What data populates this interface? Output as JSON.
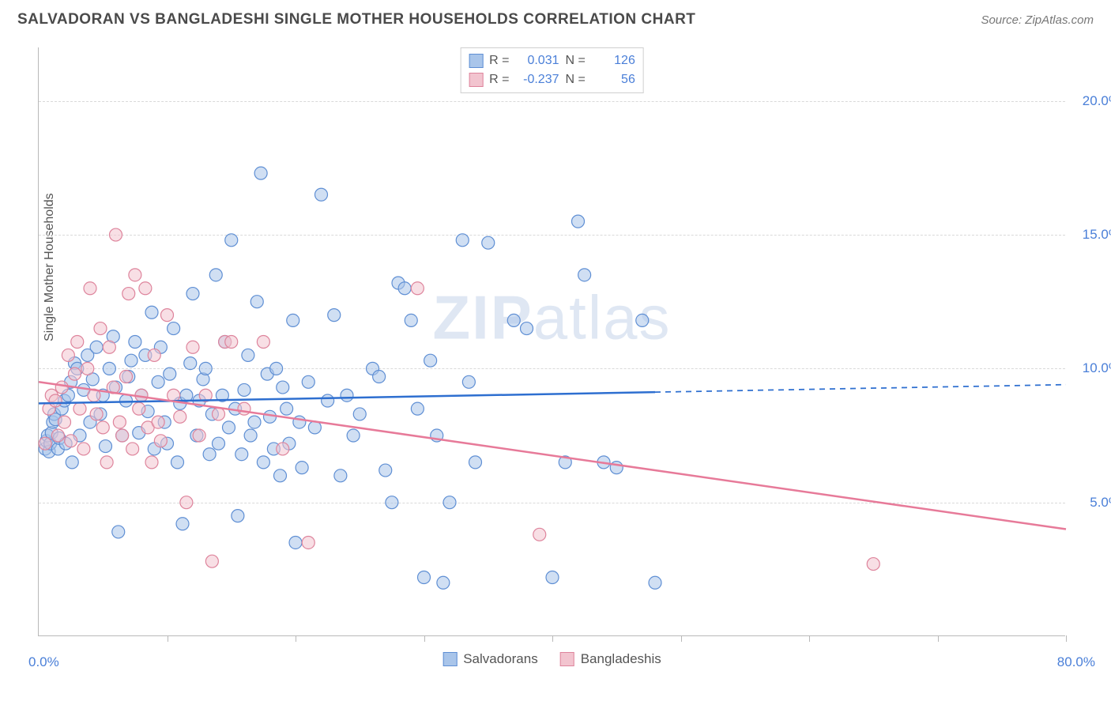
{
  "title": "SALVADORAN VS BANGLADESHI SINGLE MOTHER HOUSEHOLDS CORRELATION CHART",
  "source": "Source: ZipAtlas.com",
  "ylabel": "Single Mother Households",
  "watermark_bold": "ZIP",
  "watermark_rest": "atlas",
  "chart": {
    "type": "scatter",
    "xlim": [
      0,
      80
    ],
    "ylim": [
      0,
      22
    ],
    "x_ticks": [
      0,
      10,
      20,
      30,
      40,
      50,
      60,
      70,
      80
    ],
    "x_tick_labels": {
      "0": "0.0%",
      "80": "80.0%"
    },
    "y_gridlines": [
      5,
      10,
      15,
      20
    ],
    "y_tick_labels": {
      "5": "5.0%",
      "10": "10.0%",
      "15": "15.0%",
      "20": "20.0%"
    },
    "grid_color": "#d9d9d9",
    "background_color": "#ffffff",
    "axis_color": "#b9b9b9",
    "tick_label_color": "#4a7fd8",
    "point_radius": 8,
    "point_opacity": 0.55,
    "series": [
      {
        "name": "Salvadorans",
        "fill": "#a9c5ea",
        "stroke": "#5f8fd4",
        "r_value": "0.031",
        "n_value": "126",
        "regression": {
          "x1": 0,
          "y1": 8.7,
          "x2": 80,
          "y2": 9.4,
          "solid_until_x": 48,
          "color": "#2e6fd0",
          "width": 2.5
        },
        "points": [
          [
            0.5,
            7.0
          ],
          [
            0.6,
            7.3
          ],
          [
            0.7,
            7.5
          ],
          [
            0.8,
            6.9
          ],
          [
            0.9,
            7.2
          ],
          [
            1.0,
            7.6
          ],
          [
            1.1,
            8.0
          ],
          [
            1.2,
            8.3
          ],
          [
            1.3,
            8.1
          ],
          [
            1.5,
            7.0
          ],
          [
            1.6,
            7.4
          ],
          [
            1.8,
            8.5
          ],
          [
            2.0,
            8.8
          ],
          [
            2.1,
            7.2
          ],
          [
            2.3,
            9.0
          ],
          [
            2.5,
            9.5
          ],
          [
            2.6,
            6.5
          ],
          [
            2.8,
            10.2
          ],
          [
            3.0,
            10.0
          ],
          [
            3.2,
            7.5
          ],
          [
            3.5,
            9.2
          ],
          [
            3.8,
            10.5
          ],
          [
            4.0,
            8.0
          ],
          [
            4.2,
            9.6
          ],
          [
            4.5,
            10.8
          ],
          [
            4.8,
            8.3
          ],
          [
            5.0,
            9.0
          ],
          [
            5.2,
            7.1
          ],
          [
            5.5,
            10.0
          ],
          [
            5.8,
            11.2
          ],
          [
            6.0,
            9.3
          ],
          [
            6.2,
            3.9
          ],
          [
            6.5,
            7.5
          ],
          [
            6.8,
            8.8
          ],
          [
            7.0,
            9.7
          ],
          [
            7.2,
            10.3
          ],
          [
            7.5,
            11.0
          ],
          [
            7.8,
            7.6
          ],
          [
            8.0,
            9.0
          ],
          [
            8.3,
            10.5
          ],
          [
            8.5,
            8.4
          ],
          [
            8.8,
            12.1
          ],
          [
            9.0,
            7.0
          ],
          [
            9.3,
            9.5
          ],
          [
            9.5,
            10.8
          ],
          [
            9.8,
            8.0
          ],
          [
            10.0,
            7.2
          ],
          [
            10.2,
            9.8
          ],
          [
            10.5,
            11.5
          ],
          [
            10.8,
            6.5
          ],
          [
            11.0,
            8.7
          ],
          [
            11.2,
            4.2
          ],
          [
            11.5,
            9.0
          ],
          [
            11.8,
            10.2
          ],
          [
            12.0,
            12.8
          ],
          [
            12.3,
            7.5
          ],
          [
            12.5,
            8.8
          ],
          [
            12.8,
            9.6
          ],
          [
            13.0,
            10.0
          ],
          [
            13.3,
            6.8
          ],
          [
            13.5,
            8.3
          ],
          [
            13.8,
            13.5
          ],
          [
            14.0,
            7.2
          ],
          [
            14.3,
            9.0
          ],
          [
            14.5,
            11.0
          ],
          [
            14.8,
            7.8
          ],
          [
            15.0,
            14.8
          ],
          [
            15.3,
            8.5
          ],
          [
            15.5,
            4.5
          ],
          [
            15.8,
            6.8
          ],
          [
            16.0,
            9.2
          ],
          [
            16.3,
            10.5
          ],
          [
            16.5,
            7.5
          ],
          [
            16.8,
            8.0
          ],
          [
            17.0,
            12.5
          ],
          [
            17.3,
            17.3
          ],
          [
            17.5,
            6.5
          ],
          [
            17.8,
            9.8
          ],
          [
            18.0,
            8.2
          ],
          [
            18.3,
            7.0
          ],
          [
            18.5,
            10.0
          ],
          [
            18.8,
            6.0
          ],
          [
            19.0,
            9.3
          ],
          [
            19.3,
            8.5
          ],
          [
            19.5,
            7.2
          ],
          [
            19.8,
            11.8
          ],
          [
            20.0,
            3.5
          ],
          [
            20.3,
            8.0
          ],
          [
            20.5,
            6.3
          ],
          [
            21.0,
            9.5
          ],
          [
            21.5,
            7.8
          ],
          [
            22.0,
            16.5
          ],
          [
            22.5,
            8.8
          ],
          [
            23.0,
            12.0
          ],
          [
            23.5,
            6.0
          ],
          [
            24.0,
            9.0
          ],
          [
            24.5,
            7.5
          ],
          [
            25.0,
            8.3
          ],
          [
            26.0,
            10.0
          ],
          [
            26.5,
            9.7
          ],
          [
            27.0,
            6.2
          ],
          [
            27.5,
            5.0
          ],
          [
            28.0,
            13.2
          ],
          [
            28.5,
            13.0
          ],
          [
            29.0,
            11.8
          ],
          [
            29.5,
            8.5
          ],
          [
            30.0,
            2.2
          ],
          [
            30.5,
            10.3
          ],
          [
            31.0,
            7.5
          ],
          [
            31.5,
            2.0
          ],
          [
            32.0,
            5.0
          ],
          [
            33.0,
            14.8
          ],
          [
            33.5,
            9.5
          ],
          [
            34.0,
            6.5
          ],
          [
            35.0,
            14.7
          ],
          [
            37.0,
            11.8
          ],
          [
            38.0,
            11.5
          ],
          [
            40.0,
            2.2
          ],
          [
            41.0,
            6.5
          ],
          [
            42.0,
            15.5
          ],
          [
            42.5,
            13.5
          ],
          [
            44.0,
            6.5
          ],
          [
            45.0,
            6.3
          ],
          [
            47.0,
            11.8
          ],
          [
            48.0,
            2.0
          ]
        ]
      },
      {
        "name": "Bangladeshis",
        "fill": "#f2c4cf",
        "stroke": "#de849c",
        "r_value": "-0.237",
        "n_value": "56",
        "regression": {
          "x1": 0,
          "y1": 9.5,
          "x2": 80,
          "y2": 4.0,
          "solid_until_x": 80,
          "color": "#e77a99",
          "width": 2.5
        },
        "points": [
          [
            0.5,
            7.2
          ],
          [
            0.8,
            8.5
          ],
          [
            1.0,
            9.0
          ],
          [
            1.3,
            8.8
          ],
          [
            1.5,
            7.5
          ],
          [
            1.8,
            9.3
          ],
          [
            2.0,
            8.0
          ],
          [
            2.3,
            10.5
          ],
          [
            2.5,
            7.3
          ],
          [
            2.8,
            9.8
          ],
          [
            3.0,
            11.0
          ],
          [
            3.2,
            8.5
          ],
          [
            3.5,
            7.0
          ],
          [
            3.8,
            10.0
          ],
          [
            4.0,
            13.0
          ],
          [
            4.3,
            9.0
          ],
          [
            4.5,
            8.3
          ],
          [
            4.8,
            11.5
          ],
          [
            5.0,
            7.8
          ],
          [
            5.3,
            6.5
          ],
          [
            5.5,
            10.8
          ],
          [
            5.8,
            9.3
          ],
          [
            6.0,
            15.0
          ],
          [
            6.3,
            8.0
          ],
          [
            6.5,
            7.5
          ],
          [
            6.8,
            9.7
          ],
          [
            7.0,
            12.8
          ],
          [
            7.3,
            7.0
          ],
          [
            7.5,
            13.5
          ],
          [
            7.8,
            8.5
          ],
          [
            8.0,
            9.0
          ],
          [
            8.3,
            13.0
          ],
          [
            8.5,
            7.8
          ],
          [
            8.8,
            6.5
          ],
          [
            9.0,
            10.5
          ],
          [
            9.3,
            8.0
          ],
          [
            9.5,
            7.3
          ],
          [
            10.0,
            12.0
          ],
          [
            10.5,
            9.0
          ],
          [
            11.0,
            8.2
          ],
          [
            11.5,
            5.0
          ],
          [
            12.0,
            10.8
          ],
          [
            12.5,
            7.5
          ],
          [
            13.0,
            9.0
          ],
          [
            13.5,
            2.8
          ],
          [
            14.0,
            8.3
          ],
          [
            14.5,
            11.0
          ],
          [
            15.0,
            11.0
          ],
          [
            16.0,
            8.5
          ],
          [
            17.5,
            11.0
          ],
          [
            19.0,
            7.0
          ],
          [
            21.0,
            3.5
          ],
          [
            29.5,
            13.0
          ],
          [
            39.0,
            3.8
          ],
          [
            65.0,
            2.7
          ]
        ]
      }
    ]
  },
  "legend": {
    "series1_label": "Salvadorans",
    "series2_label": "Bangladeshis"
  },
  "stats_labels": {
    "r": "R =",
    "n": "N ="
  }
}
